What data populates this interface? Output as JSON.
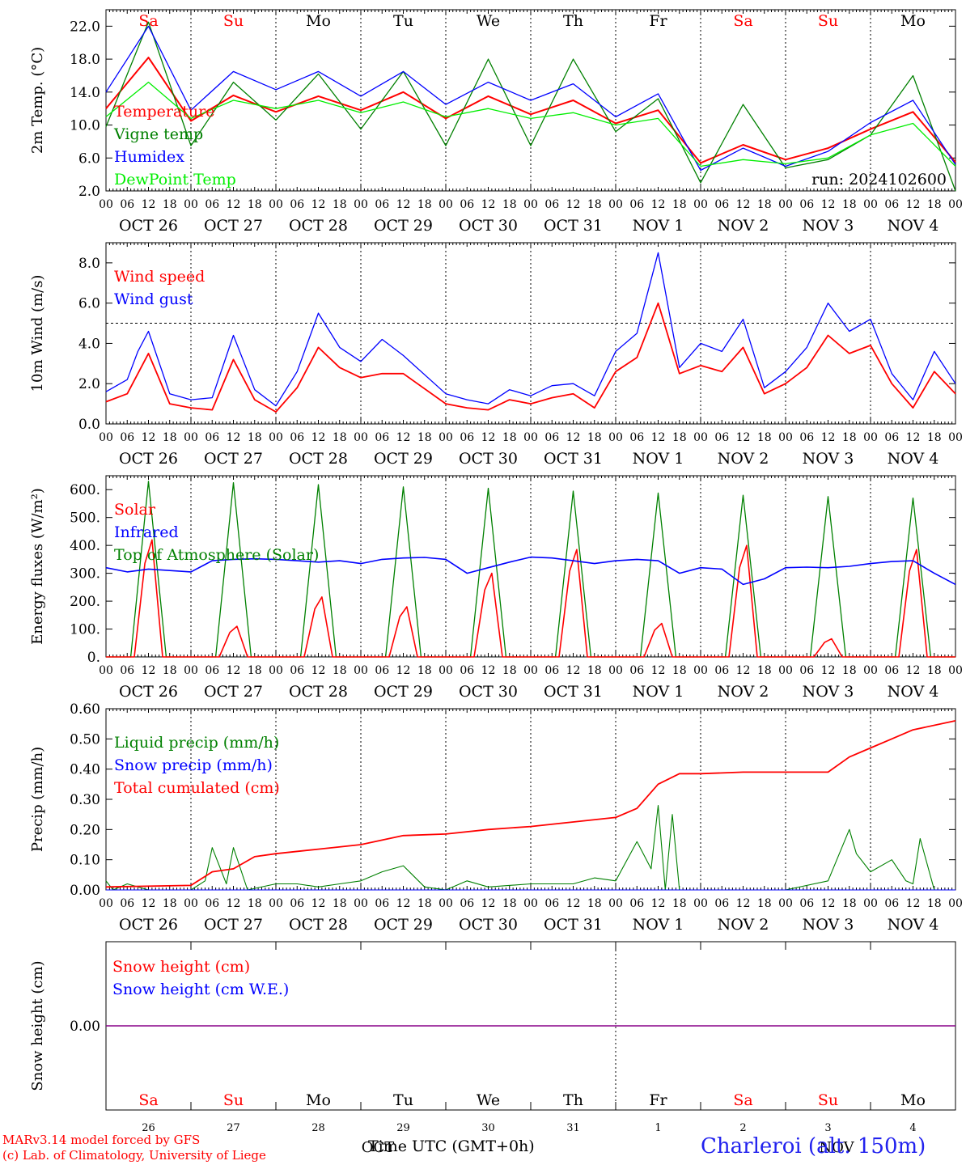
{
  "colors": {
    "red": "#ff0000",
    "blue": "#0000ff",
    "green": "#008000",
    "lightgreen": "#00ee00",
    "purple": "#880088"
  },
  "days_top": [
    "Sa",
    "Su",
    "Mo",
    "Tu",
    "We",
    "Th",
    "Fr",
    "Sa",
    "Su",
    "Mo"
  ],
  "date_labels": [
    "OCT 26",
    "OCT 27",
    "OCT 28",
    "OCT 29",
    "OCT 30",
    "OCT 31",
    "NOV  1",
    "NOV  2",
    "NOV  3",
    "NOV  4"
  ],
  "hour_ticks": [
    "00",
    "06",
    "12",
    "18"
  ],
  "day_numbers": [
    "26",
    "27",
    "28",
    "29",
    "30",
    "31",
    "1",
    "2",
    "3",
    "4"
  ],
  "month_labels": [
    "OCT",
    "NOV"
  ],
  "xlabel": "Time UTC (GMT+0h)",
  "footer": {
    "model": "MARv3.14 model forced by GFS",
    "credit": "(c) Lab. of Climatology, University of Liege",
    "station": "Charleroi (alt. 150m)"
  },
  "chart_data": [
    {
      "type": "line",
      "ylabel": "2m Temp. (°C)",
      "ylim": [
        2.0,
        24.0
      ],
      "yticks": [
        "2.0",
        "6.0",
        "10.0",
        "14.0",
        "18.0",
        "22.0"
      ],
      "run_label": "run: 2024102600",
      "x_hours": [
        0,
        12,
        24,
        36,
        48,
        60,
        72,
        84,
        96,
        108,
        120,
        132,
        144,
        156,
        168,
        180,
        192,
        204,
        216,
        228,
        240
      ],
      "series": [
        {
          "name": "Temperature",
          "color": "red",
          "values": [
            12.0,
            18.2,
            10.5,
            13.6,
            11.6,
            13.5,
            11.8,
            14.0,
            10.8,
            13.5,
            11.3,
            13.0,
            10.2,
            11.8,
            5.4,
            7.6,
            5.8,
            7.2,
            9.5,
            11.6,
            5.5
          ]
        },
        {
          "name": "Vigne temp",
          "color": "green",
          "values": [
            9.8,
            22.5,
            7.5,
            15.2,
            10.6,
            16.2,
            9.5,
            16.5,
            7.5,
            18.0,
            7.5,
            18.0,
            9.2,
            13.2,
            3.0,
            12.5,
            4.8,
            5.8,
            8.8,
            16.0,
            2.0
          ]
        },
        {
          "name": "Humidex",
          "color": "blue",
          "values": [
            14.0,
            22.0,
            11.8,
            16.5,
            14.3,
            16.5,
            13.5,
            16.5,
            12.5,
            15.2,
            13.0,
            15.0,
            11.0,
            13.8,
            4.5,
            7.2,
            5.0,
            6.8,
            10.3,
            13.0,
            5.2
          ]
        },
        {
          "name": "DewPoint Temp",
          "color": "lightgreen",
          "values": [
            11.0,
            15.2,
            10.8,
            13.0,
            12.0,
            13.0,
            11.5,
            12.8,
            11.0,
            12.0,
            10.8,
            11.5,
            10.0,
            10.8,
            5.0,
            5.8,
            5.3,
            6.0,
            8.8,
            10.2,
            5.0
          ]
        }
      ]
    },
    {
      "type": "line",
      "ylabel": "10m Wind (m/s)",
      "ylim": [
        0.0,
        9.0
      ],
      "yticks": [
        "0.0",
        "2.0",
        "4.0",
        "6.0",
        "8.0"
      ],
      "hline": 5.0,
      "x_hours": [
        0,
        6,
        9,
        12,
        18,
        24,
        30,
        36,
        42,
        48,
        54,
        60,
        66,
        72,
        78,
        84,
        96,
        102,
        108,
        114,
        120,
        126,
        132,
        138,
        144,
        150,
        156,
        162,
        168,
        174,
        180,
        186,
        192,
        198,
        204,
        210,
        216,
        222,
        228,
        234,
        240
      ],
      "series": [
        {
          "name": "Wind speed",
          "color": "red",
          "values": [
            1.1,
            1.5,
            2.5,
            3.5,
            1.0,
            0.8,
            0.7,
            3.2,
            1.2,
            0.6,
            1.8,
            3.8,
            2.8,
            2.3,
            2.5,
            2.5,
            1.0,
            0.8,
            0.7,
            1.2,
            1.0,
            1.3,
            1.5,
            0.8,
            2.6,
            3.3,
            6.0,
            2.5,
            2.9,
            2.6,
            3.8,
            1.5,
            2.0,
            2.8,
            4.4,
            3.5,
            3.9,
            2.0,
            0.8,
            2.6,
            1.5
          ]
        },
        {
          "name": "Wind gust",
          "color": "blue",
          "values": [
            1.6,
            2.2,
            3.6,
            4.6,
            1.5,
            1.2,
            1.3,
            4.4,
            1.7,
            0.9,
            2.6,
            5.5,
            3.8,
            3.1,
            4.2,
            3.4,
            1.5,
            1.2,
            1.0,
            1.7,
            1.4,
            1.9,
            2.0,
            1.4,
            3.6,
            4.5,
            8.5,
            2.8,
            4.0,
            3.6,
            5.2,
            1.8,
            2.6,
            3.8,
            6.0,
            4.6,
            5.2,
            2.5,
            1.2,
            3.6,
            2.0
          ]
        }
      ]
    },
    {
      "type": "line",
      "ylabel": "Energy fluxes (W/m²)",
      "ylim": [
        0,
        650
      ],
      "yticks": [
        "0.",
        "100.",
        "200.",
        "300.",
        "400.",
        "500.",
        "600."
      ],
      "diurnal_peaks_toa": [
        630,
        625,
        618,
        610,
        605,
        595,
        588,
        580,
        575,
        570
      ],
      "diurnal_peaks_solar": [
        420,
        110,
        215,
        180,
        300,
        385,
        120,
        400,
        65,
        385
      ],
      "series": [
        {
          "name": "Solar",
          "color": "red"
        },
        {
          "name": "Infrared",
          "color": "blue",
          "x_hours": [
            0,
            6,
            12,
            18,
            24,
            30,
            36,
            42,
            48,
            54,
            60,
            66,
            72,
            78,
            84,
            90,
            96,
            102,
            108,
            114,
            120,
            126,
            132,
            138,
            144,
            150,
            156,
            162,
            168,
            174,
            180,
            186,
            192,
            198,
            204,
            210,
            216,
            222,
            228,
            234,
            240
          ],
          "values": [
            320,
            305,
            315,
            310,
            305,
            345,
            350,
            352,
            350,
            345,
            340,
            345,
            335,
            350,
            355,
            357,
            350,
            300,
            320,
            340,
            358,
            355,
            345,
            335,
            345,
            350,
            345,
            300,
            320,
            315,
            260,
            280,
            320,
            322,
            320,
            325,
            335,
            342,
            345,
            300,
            260
          ]
        },
        {
          "name": "Top of Atmosphere (Solar)",
          "color": "green"
        }
      ]
    },
    {
      "type": "line",
      "ylabel": "Precip (mm/h)",
      "ylim": [
        0.0,
        0.6
      ],
      "yticks": [
        "0.00",
        "0.10",
        "0.20",
        "0.30",
        "0.40",
        "0.50",
        "0.60"
      ],
      "series": [
        {
          "name": "Liquid precip (mm/h)",
          "color": "green",
          "x_hours": [
            0,
            2,
            6,
            12,
            24,
            28,
            30,
            34,
            36,
            40,
            48,
            54,
            60,
            66,
            72,
            78,
            84,
            90,
            96,
            102,
            108,
            120,
            132,
            138,
            144,
            150,
            154,
            156,
            158,
            160,
            162,
            166,
            168,
            180,
            192,
            204,
            210,
            212,
            216,
            222,
            226,
            228,
            230,
            234,
            240
          ],
          "values": [
            0.03,
            0.0,
            0.02,
            0.0,
            0.0,
            0.03,
            0.14,
            0.02,
            0.14,
            0.0,
            0.02,
            0.02,
            0.01,
            0.02,
            0.03,
            0.06,
            0.08,
            0.01,
            0.0,
            0.03,
            0.01,
            0.02,
            0.02,
            0.04,
            0.03,
            0.16,
            0.07,
            0.28,
            0.0,
            0.25,
            0.0,
            0.0,
            0.0,
            0.0,
            0.0,
            0.03,
            0.2,
            0.12,
            0.06,
            0.1,
            0.03,
            0.02,
            0.17,
            0.0,
            0.0
          ]
        },
        {
          "name": "Snow precip (mm/h)",
          "color": "blue",
          "x_hours": [
            0,
            240
          ],
          "values": [
            0.0,
            0.0
          ]
        },
        {
          "name": "Total cumulated (cm)",
          "color": "red",
          "x_hours": [
            0,
            24,
            30,
            36,
            42,
            48,
            60,
            72,
            84,
            96,
            108,
            120,
            132,
            144,
            150,
            156,
            162,
            168,
            180,
            192,
            204,
            210,
            216,
            222,
            228,
            240
          ],
          "values": [
            0.01,
            0.015,
            0.06,
            0.07,
            0.11,
            0.12,
            0.135,
            0.15,
            0.18,
            0.185,
            0.2,
            0.21,
            0.225,
            0.24,
            0.27,
            0.35,
            0.385,
            0.385,
            0.39,
            0.39,
            0.39,
            0.44,
            0.47,
            0.5,
            0.53,
            0.56
          ]
        }
      ]
    },
    {
      "type": "line",
      "ylabel": "Snow height (cm)",
      "ylim": [
        -1,
        1
      ],
      "yticks": [
        "0.00"
      ],
      "series": [
        {
          "name": "Snow height (cm)",
          "color": "red",
          "values": [
            0.0,
            0.0
          ]
        },
        {
          "name": "Snow height (cm W.E.)",
          "color": "blue",
          "values": [
            0.0,
            0.0
          ]
        }
      ]
    }
  ]
}
